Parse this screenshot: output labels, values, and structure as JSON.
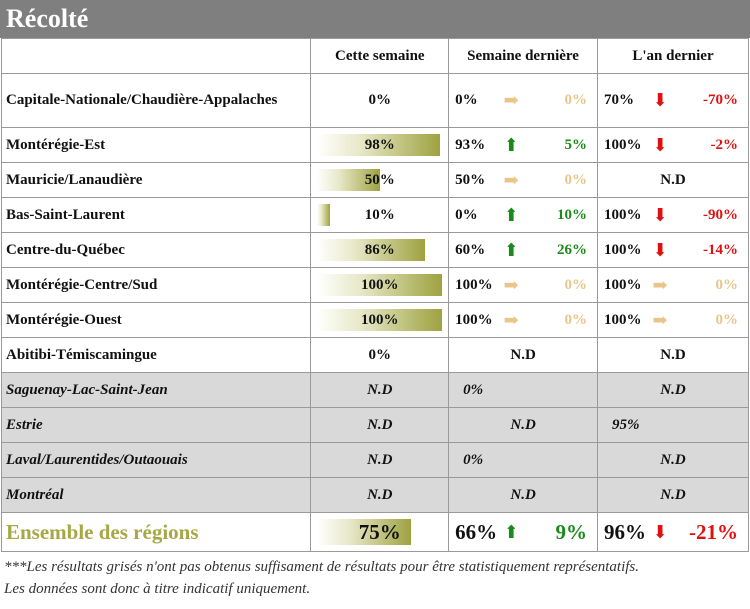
{
  "title": "Récolté",
  "headers": {
    "region": "",
    "this_week": "Cette semaine",
    "last_week": "Semaine dernière",
    "last_year": "L'an dernier"
  },
  "colors": {
    "up": "#1a8a1a",
    "down": "#e01010",
    "flat": "#e9c58a",
    "grey": "#d9d9d9",
    "accent": "#a7a845"
  },
  "rows": [
    {
      "region": "Capitale-Nationale/Chaudière-Appalaches",
      "this_week": "0%",
      "bar": 0,
      "lw_val": "0%",
      "lw_arrow": "right",
      "lw_delta": "0%",
      "ly_val": "70%",
      "ly_arrow": "down",
      "ly_delta": "-70%",
      "grey": false
    },
    {
      "region": "Montérégie-Est",
      "this_week": "98%",
      "bar": 0.98,
      "lw_val": "93%",
      "lw_arrow": "up",
      "lw_delta": "5%",
      "ly_val": "100%",
      "ly_arrow": "down",
      "ly_delta": "-2%",
      "grey": false
    },
    {
      "region": "Mauricie/Lanaudière",
      "this_week": "50%",
      "bar": 0.5,
      "lw_val": "50%",
      "lw_arrow": "right",
      "lw_delta": "0%",
      "ly_text": "N.D",
      "grey": false
    },
    {
      "region": "Bas-Saint-Laurent",
      "this_week": "10%",
      "bar": 0.1,
      "lw_val": "0%",
      "lw_arrow": "up",
      "lw_delta": "10%",
      "ly_val": "100%",
      "ly_arrow": "down",
      "ly_delta": "-90%",
      "grey": false
    },
    {
      "region": "Centre-du-Québec",
      "this_week": "86%",
      "bar": 0.86,
      "lw_val": "60%",
      "lw_arrow": "up",
      "lw_delta": "26%",
      "ly_val": "100%",
      "ly_arrow": "down",
      "ly_delta": "-14%",
      "grey": false
    },
    {
      "region": "Montérégie-Centre/Sud",
      "this_week": "100%",
      "bar": 1.0,
      "lw_val": "100%",
      "lw_arrow": "right",
      "lw_delta": "0%",
      "ly_val": "100%",
      "ly_arrow": "right",
      "ly_delta": "0%",
      "grey": false
    },
    {
      "region": "Montérégie-Ouest",
      "this_week": "100%",
      "bar": 1.0,
      "lw_val": "100%",
      "lw_arrow": "right",
      "lw_delta": "0%",
      "ly_val": "100%",
      "ly_arrow": "right",
      "ly_delta": "0%",
      "grey": false
    },
    {
      "region": "Abitibi-Témiscamingue",
      "this_week": "0%",
      "bar": 0,
      "lw_text": "N.D",
      "ly_text": "N.D",
      "grey": false
    },
    {
      "region": "Saguenay-Lac-Saint-Jean",
      "this_week": "N.D",
      "lw_text_left": "0%",
      "ly_text": "N.D",
      "grey": true
    },
    {
      "region": "Estrie",
      "this_week": "N.D",
      "lw_text": "N.D",
      "ly_text_left": "95%",
      "grey": true
    },
    {
      "region": "Laval/Laurentides/Outaouais",
      "this_week": "N.D",
      "lw_text_left": "0%",
      "ly_text": "N.D",
      "grey": true
    },
    {
      "region": "Montréal",
      "this_week": "N.D",
      "lw_text": "N.D",
      "ly_text": "N.D",
      "grey": true
    }
  ],
  "ensemble": {
    "region": "Ensemble des régions",
    "this_week": "75%",
    "bar": 0.75,
    "lw_val": "66%",
    "lw_arrow": "up",
    "lw_delta": "9%",
    "ly_val": "96%",
    "ly_arrow": "down",
    "ly_delta": "-21%"
  },
  "note": {
    "line1": "***Les résultats grisés n'ont pas obtenus suffisament de résultats pour être statistiquement représentatifs.",
    "line2": "Les données sont donc à titre indicatif uniquement."
  }
}
